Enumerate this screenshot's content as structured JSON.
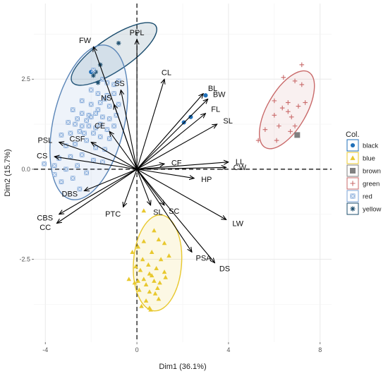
{
  "chart_data": {
    "type": "scatter",
    "subtype": "pca-biplot",
    "xlabel": "Dim1 (36.1%)",
    "ylabel": "Dim2 (15.7%)",
    "xlim": [
      -4.5,
      8.5
    ],
    "ylim": [
      -4.8,
      4.6
    ],
    "xticks": [
      -4,
      0,
      4,
      8
    ],
    "yticks": [
      -2.5,
      0.0,
      2.5
    ],
    "xtick_labels": [
      "-4",
      "0",
      "4",
      "8"
    ],
    "ytick_labels": [
      "-2.5",
      "0.0",
      "2.5"
    ],
    "grid": true,
    "zero_lines": true,
    "legend": {
      "title": "Col.",
      "placement": "right",
      "entries": [
        {
          "label": "black",
          "color": "#1f6fb8",
          "marker": "circle"
        },
        {
          "label": "blue",
          "color": "#e8c82e",
          "marker": "triangle"
        },
        {
          "label": "brown",
          "color": "#808080",
          "marker": "square"
        },
        {
          "label": "green",
          "color": "#c96a6a",
          "marker": "plus"
        },
        {
          "label": "red",
          "color": "#7aa2d6",
          "marker": "boxcross"
        },
        {
          "label": "yellow",
          "color": "#1b4d6e",
          "marker": "asterisk"
        }
      ]
    },
    "ellipses": [
      {
        "group": "yellow",
        "cx": -1.0,
        "cy": 3.2,
        "rx": 2.2,
        "ry": 0.72,
        "angle": 34,
        "stroke": "#1b4d6e",
        "fill": "#1b4d6e",
        "opacity": 0.13
      },
      {
        "group": "red",
        "cx": -2.1,
        "cy": 1.3,
        "rx": 3.45,
        "ry": 1.55,
        "angle": 77,
        "stroke": "#5b86b8",
        "fill": "#7aa2d6",
        "opacity": 0.13
      },
      {
        "group": "blue",
        "cx": 0.9,
        "cy": -2.6,
        "rx": 2.1,
        "ry": 1.05,
        "angle": 86,
        "stroke": "#e8c82e",
        "fill": "#e8c82e",
        "opacity": 0.13
      },
      {
        "group": "green",
        "cx": 6.55,
        "cy": 1.65,
        "rx": 1.9,
        "ry": 0.85,
        "angle": 60,
        "stroke": "#c96a6a",
        "fill": "#c96a6a",
        "opacity": 0.1
      }
    ],
    "variables": [
      {
        "name": "FW",
        "x": -1.9,
        "y": 3.4
      },
      {
        "name": "PPL",
        "x": 0.0,
        "y": 3.6
      },
      {
        "name": "SS",
        "x": -0.7,
        "y": 2.2
      },
      {
        "name": "NS",
        "x": -1.0,
        "y": 1.8
      },
      {
        "name": "CL",
        "x": 1.2,
        "y": 2.5
      },
      {
        "name": "BL",
        "x": 2.9,
        "y": 2.1
      },
      {
        "name": "BW",
        "x": 3.1,
        "y": 1.95
      },
      {
        "name": "FL",
        "x": 3.0,
        "y": 1.55
      },
      {
        "name": "SL",
        "x": 3.5,
        "y": 1.25
      },
      {
        "name": "CE",
        "x": -1.2,
        "y": 1.05
      },
      {
        "name": "CSF",
        "x": -2.0,
        "y": 0.75
      },
      {
        "name": "PSL",
        "x": -3.4,
        "y": 0.75
      },
      {
        "name": "CS",
        "x": -3.6,
        "y": 0.35
      },
      {
        "name": "CF",
        "x": 1.2,
        "y": 0.15
      },
      {
        "name": "LL",
        "x": 4.0,
        "y": 0.2
      },
      {
        "name": "CW",
        "x": 3.9,
        "y": 0.05
      },
      {
        "name": "HP",
        "x": 2.5,
        "y": -0.25
      },
      {
        "name": "DBS",
        "x": -2.3,
        "y": -0.6
      },
      {
        "name": "CBS",
        "x": -3.4,
        "y": -1.25
      },
      {
        "name": "CC",
        "x": -3.5,
        "y": -1.5
      },
      {
        "name": "PTC",
        "x": -0.6,
        "y": -1.05
      },
      {
        "name": "SL",
        "x": 0.6,
        "y": -1.0
      },
      {
        "name": "SC",
        "x": 1.2,
        "y": -1.0
      },
      {
        "name": "LW",
        "x": 3.9,
        "y": -1.4
      },
      {
        "name": "PSA",
        "x": 2.4,
        "y": -2.3
      },
      {
        "name": "DS",
        "x": 3.4,
        "y": -2.6
      }
    ],
    "series": [
      {
        "name": "black",
        "marker": "circle",
        "color": "#1f6fb8",
        "points": [
          [
            -2.0,
            2.7
          ],
          [
            2.05,
            1.3
          ],
          [
            2.35,
            1.45
          ],
          [
            3.0,
            2.05
          ]
        ]
      },
      {
        "name": "yellow",
        "marker": "asterisk",
        "color": "#1b4d6e",
        "points": [
          [
            -0.8,
            3.5
          ],
          [
            -1.6,
            2.9
          ],
          [
            -1.9,
            2.6
          ],
          [
            -1.7,
            2.4
          ],
          [
            -1.8,
            2.7
          ]
        ]
      },
      {
        "name": "brown",
        "marker": "square",
        "color": "#808080",
        "points": [
          [
            7.0,
            0.95
          ]
        ]
      },
      {
        "name": "green",
        "marker": "plus",
        "color": "#c96a6a",
        "points": [
          [
            7.2,
            2.9
          ],
          [
            6.4,
            2.55
          ],
          [
            6.9,
            2.45
          ],
          [
            7.2,
            2.35
          ],
          [
            6.0,
            1.9
          ],
          [
            6.6,
            1.85
          ],
          [
            7.05,
            1.75
          ],
          [
            6.35,
            1.7
          ],
          [
            7.35,
            1.85
          ],
          [
            6.6,
            1.6
          ],
          [
            6.0,
            1.5
          ],
          [
            6.75,
            1.45
          ],
          [
            6.2,
            1.2
          ],
          [
            6.9,
            1.2
          ],
          [
            5.6,
            1.1
          ],
          [
            6.1,
            0.8
          ],
          [
            5.3,
            0.8
          ],
          [
            6.7,
            1.05
          ]
        ]
      },
      {
        "name": "blue",
        "marker": "triangle",
        "color": "#e8c82e",
        "points": [
          [
            0.3,
            -1.15
          ],
          [
            0.75,
            -1.7
          ],
          [
            0.95,
            -1.95
          ],
          [
            0.3,
            -2.0
          ],
          [
            1.2,
            -2.05
          ],
          [
            0.05,
            -2.15
          ],
          [
            0.65,
            -2.3
          ],
          [
            0.25,
            -2.5
          ],
          [
            1.05,
            -2.5
          ],
          [
            0.5,
            -2.65
          ],
          [
            0.85,
            -2.75
          ],
          [
            0.15,
            -2.8
          ],
          [
            1.2,
            -2.85
          ],
          [
            0.55,
            -2.9
          ],
          [
            0.65,
            -2.95
          ],
          [
            0.3,
            -3.05
          ],
          [
            0.75,
            -3.1
          ],
          [
            0.05,
            -3.1
          ],
          [
            1.0,
            -3.15
          ],
          [
            0.4,
            -3.2
          ],
          [
            -0.35,
            -3.05
          ],
          [
            0.9,
            -3.3
          ],
          [
            0.1,
            -3.35
          ],
          [
            0.55,
            -3.4
          ],
          [
            -0.1,
            -3.15
          ],
          [
            1.25,
            -3.0
          ],
          [
            0.8,
            -3.45
          ],
          [
            0.4,
            -3.65
          ],
          [
            0.95,
            -3.6
          ],
          [
            0.2,
            -3.8
          ],
          [
            0.6,
            -3.9
          ],
          [
            -0.2,
            -2.3
          ],
          [
            -0.05,
            -2.7
          ],
          [
            1.4,
            -2.4
          ],
          [
            0.55,
            -3.85
          ]
        ]
      },
      {
        "name": "red",
        "marker": "boxcross",
        "color": "#7aa2d6",
        "points": [
          [
            -1.9,
            2.75
          ],
          [
            -1.5,
            2.5
          ],
          [
            -1.3,
            2.4
          ],
          [
            -1.0,
            2.35
          ],
          [
            -0.8,
            2.45
          ],
          [
            -2.0,
            2.2
          ],
          [
            -1.7,
            2.1
          ],
          [
            -1.3,
            2.05
          ],
          [
            -1.0,
            2.1
          ],
          [
            -2.4,
            1.9
          ],
          [
            -2.0,
            1.8
          ],
          [
            -1.6,
            1.85
          ],
          [
            -1.2,
            1.75
          ],
          [
            -0.8,
            1.8
          ],
          [
            -2.8,
            1.65
          ],
          [
            -2.4,
            1.55
          ],
          [
            -2.1,
            1.5
          ],
          [
            -1.8,
            1.55
          ],
          [
            -1.5,
            1.45
          ],
          [
            -1.2,
            1.4
          ],
          [
            -0.9,
            1.5
          ],
          [
            -3.0,
            1.3
          ],
          [
            -2.7,
            1.25
          ],
          [
            -2.4,
            1.2
          ],
          [
            -2.1,
            1.2
          ],
          [
            -1.8,
            1.15
          ],
          [
            -1.6,
            1.25
          ],
          [
            -1.3,
            1.1
          ],
          [
            -1.0,
            1.2
          ],
          [
            -2.2,
            1.35
          ],
          [
            -2.0,
            1.45
          ],
          [
            -1.9,
            1.0
          ],
          [
            -2.5,
            1.05
          ],
          [
            -2.9,
            1.0
          ],
          [
            -3.3,
            0.95
          ],
          [
            -1.6,
            0.9
          ],
          [
            -1.2,
            0.85
          ],
          [
            -2.2,
            0.8
          ],
          [
            -2.7,
            0.7
          ],
          [
            -3.1,
            0.65
          ],
          [
            -1.8,
            0.6
          ],
          [
            -1.4,
            0.55
          ],
          [
            -2.4,
            0.4
          ],
          [
            -2.9,
            0.35
          ],
          [
            -3.4,
            0.3
          ],
          [
            -1.9,
            0.25
          ],
          [
            -1.5,
            0.2
          ],
          [
            -2.6,
            0.1
          ],
          [
            -3.1,
            0.0
          ],
          [
            -4.05,
            0.15
          ],
          [
            -3.6,
            0.1
          ],
          [
            -2.2,
            -0.1
          ],
          [
            -2.8,
            -0.25
          ],
          [
            -3.3,
            -0.35
          ],
          [
            -2.5,
            -0.55
          ],
          [
            -3.6,
            -0.15
          ],
          [
            -1.7,
            1.65
          ],
          [
            -1.4,
            1.95
          ],
          [
            -2.6,
            1.4
          ],
          [
            -2.3,
            1.0
          ]
        ]
      }
    ]
  }
}
